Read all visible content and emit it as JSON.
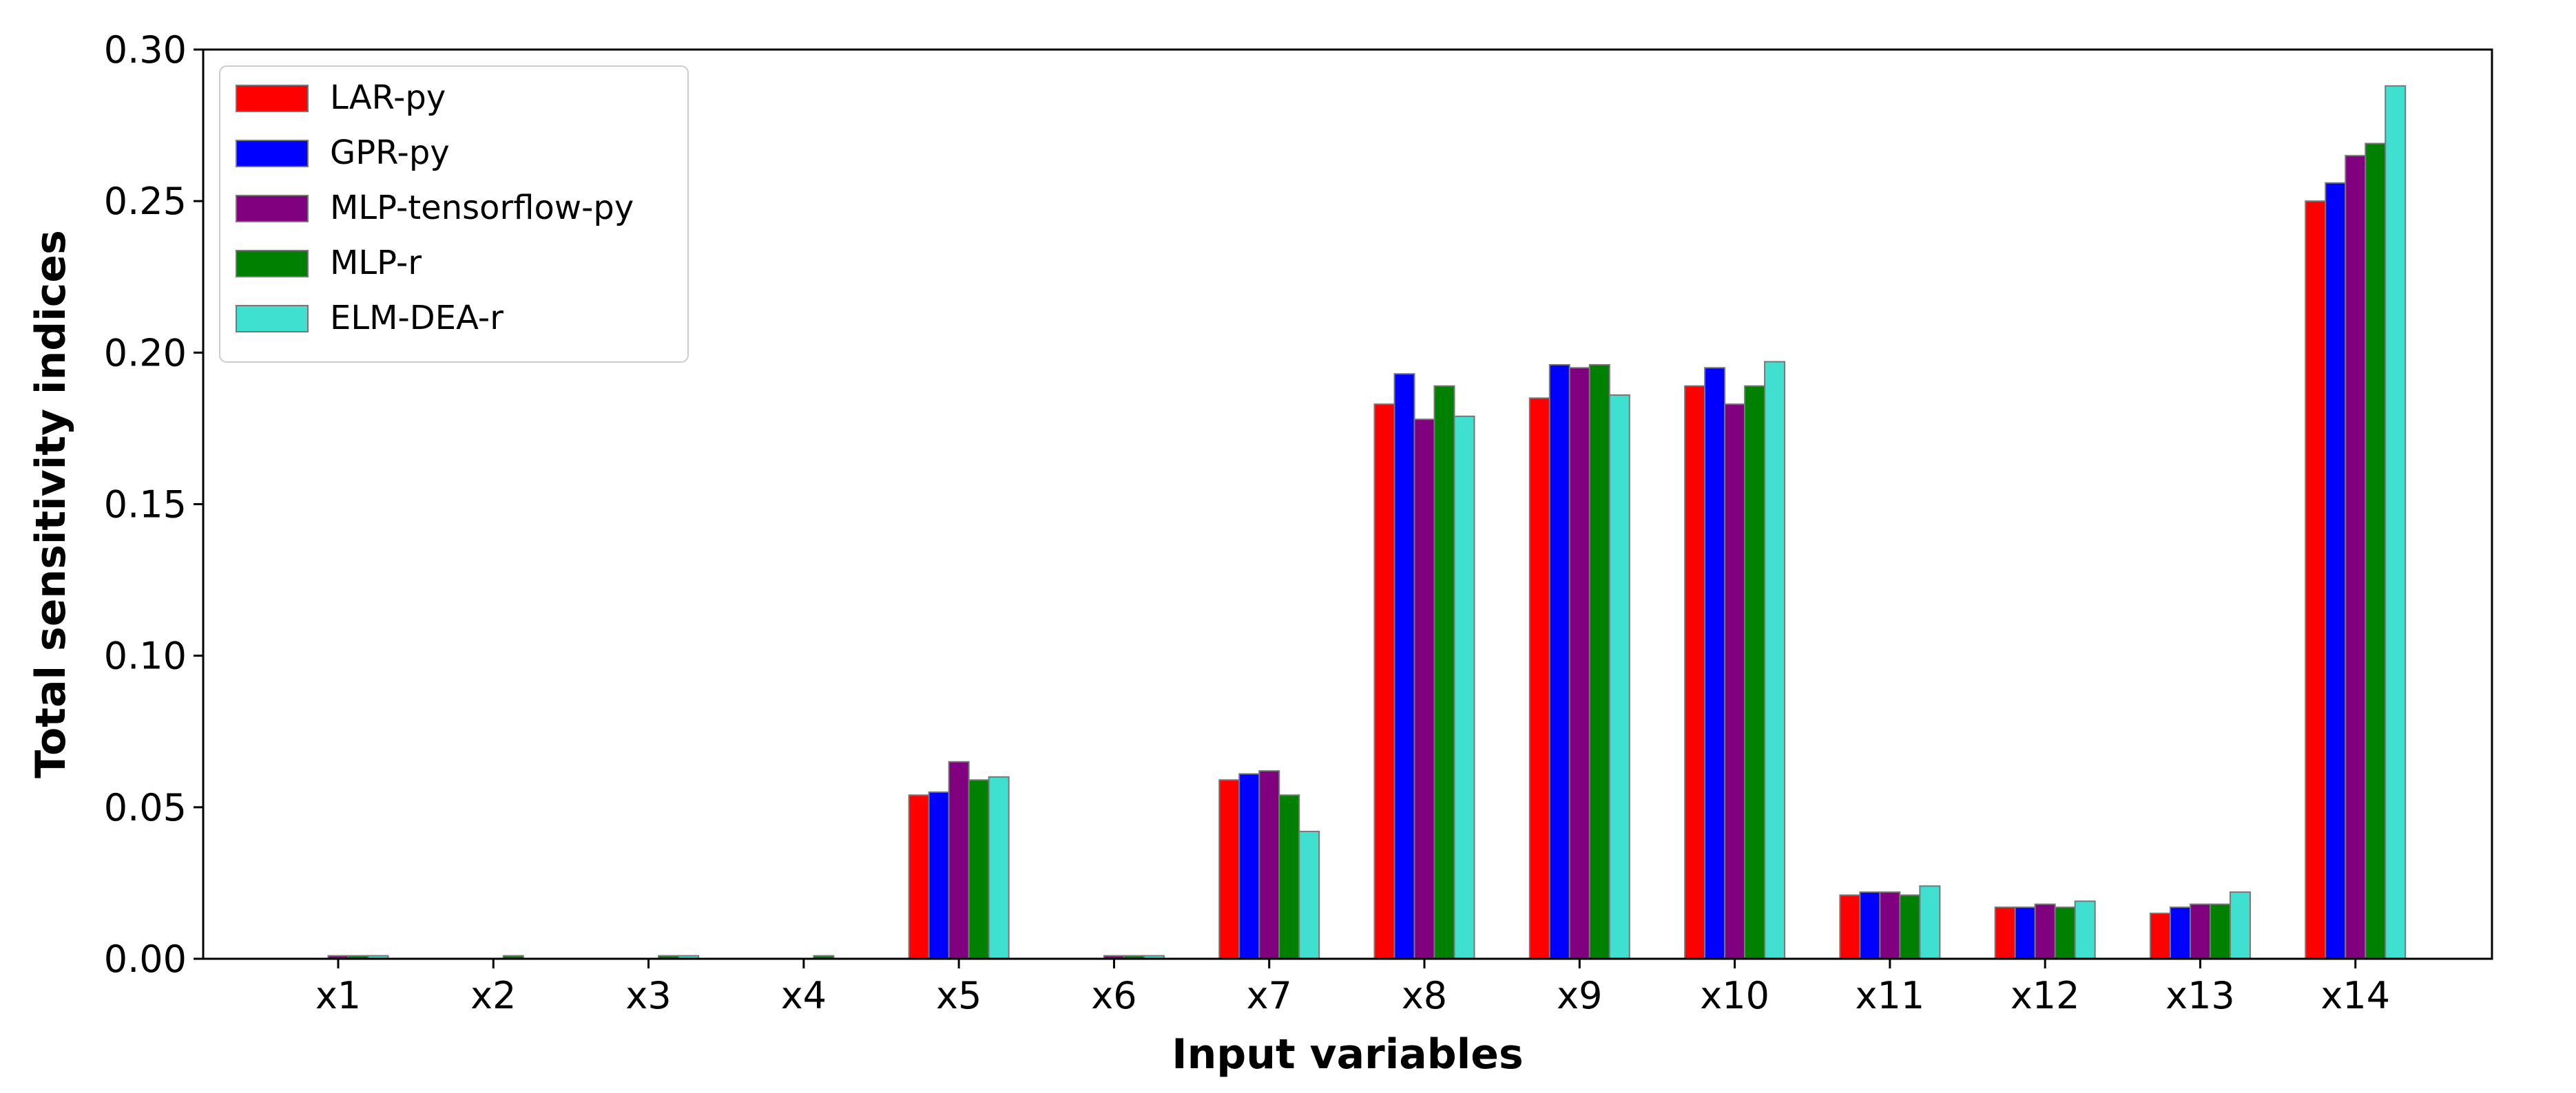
{
  "chart_data": {
    "type": "bar",
    "title": "",
    "xlabel": "Input variables",
    "ylabel": "Total sensitivity indices",
    "ylim": [
      0,
      0.3
    ],
    "yticks": [
      "0.00",
      "0.05",
      "0.10",
      "0.15",
      "0.20",
      "0.25",
      "0.30"
    ],
    "grid": false,
    "legend_position": "top-left",
    "categories": [
      "x1",
      "x2",
      "x3",
      "x4",
      "x5",
      "x6",
      "x7",
      "x8",
      "x9",
      "x10",
      "x11",
      "x12",
      "x13",
      "x14"
    ],
    "series": [
      {
        "name": "LAR-py",
        "color": "#ff0000",
        "values": [
          0.0,
          0.0,
          0.0,
          0.0,
          0.054,
          0.0,
          0.059,
          0.183,
          0.185,
          0.189,
          0.021,
          0.017,
          0.015,
          0.25
        ]
      },
      {
        "name": "GPR-py",
        "color": "#0000ff",
        "values": [
          0.0,
          0.0,
          0.0,
          0.0,
          0.055,
          0.0,
          0.061,
          0.193,
          0.196,
          0.195,
          0.022,
          0.017,
          0.017,
          0.256
        ]
      },
      {
        "name": "MLP-tensorflow-py",
        "color": "#800080",
        "values": [
          0.001,
          0.0,
          0.0,
          0.0,
          0.065,
          0.001,
          0.062,
          0.178,
          0.195,
          0.183,
          0.022,
          0.018,
          0.018,
          0.265
        ]
      },
      {
        "name": "MLP-r",
        "color": "#008000",
        "values": [
          0.001,
          0.001,
          0.001,
          0.001,
          0.059,
          0.001,
          0.054,
          0.189,
          0.196,
          0.189,
          0.021,
          0.017,
          0.018,
          0.269
        ]
      },
      {
        "name": "ELM-DEA-r",
        "color": "#40e0d0",
        "values": [
          0.001,
          0.0,
          0.001,
          0.0,
          0.06,
          0.001,
          0.042,
          0.179,
          0.186,
          0.197,
          0.024,
          0.019,
          0.022,
          0.288
        ]
      }
    ]
  }
}
